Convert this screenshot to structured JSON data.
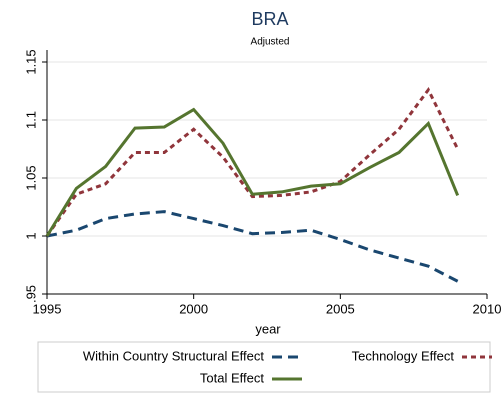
{
  "chart_data": {
    "type": "line",
    "title": "BRA",
    "subtitle": "Adjusted",
    "x_label": "year",
    "x": [
      1995,
      1996,
      1997,
      1998,
      1999,
      2000,
      2001,
      2002,
      2003,
      2004,
      2005,
      2006,
      2007,
      2008,
      2009
    ],
    "series": [
      {
        "name": "Within Country Structural Effect",
        "color": "#1a476f",
        "dash": "long",
        "values": [
          1.0,
          1.005,
          1.015,
          1.019,
          1.021,
          1.015,
          1.009,
          1.002,
          1.003,
          1.005,
          0.997,
          0.988,
          0.981,
          0.974,
          0.961
        ]
      },
      {
        "name": "Technology Effect",
        "color": "#90353b",
        "dash": "short",
        "values": [
          1.0,
          1.036,
          1.045,
          1.072,
          1.072,
          1.092,
          1.068,
          1.034,
          1.035,
          1.038,
          1.047,
          1.07,
          1.092,
          1.126,
          1.075
        ]
      },
      {
        "name": "Total Effect",
        "color": "#55752f",
        "dash": "solid",
        "values": [
          1.0,
          1.041,
          1.06,
          1.093,
          1.094,
          1.109,
          1.08,
          1.036,
          1.038,
          1.043,
          1.045,
          1.059,
          1.072,
          1.097,
          1.035
        ]
      }
    ],
    "xlim": [
      1995,
      2010
    ],
    "xticks": [
      1995,
      2000,
      2005,
      2010
    ],
    "ylim": [
      0.95,
      1.15
    ],
    "yticks": [
      {
        "value": 0.95,
        "label": ".95"
      },
      1,
      1.05,
      1.1,
      1.15
    ],
    "grid": true,
    "legend": "bottom"
  }
}
